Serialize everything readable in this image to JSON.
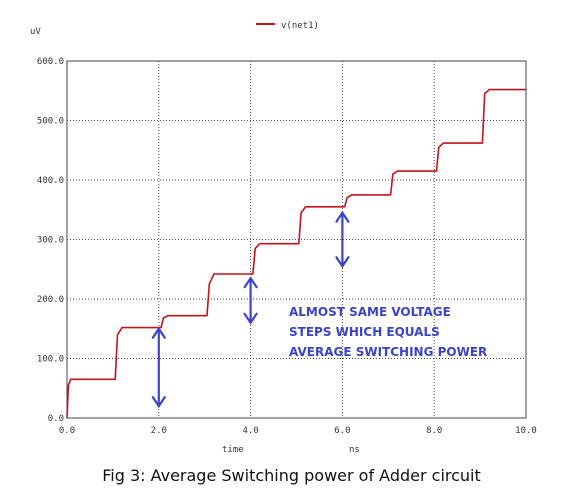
{
  "caption": "Fig 3: Average Switching power of Adder circuit",
  "colors": {
    "trace": "#c0151a",
    "annotation": "#3b44c4",
    "grid": "#444444",
    "axis_text": "#333333"
  },
  "chart_data": {
    "type": "line",
    "title": "",
    "ylabel": "uV",
    "xlabel": "time",
    "xunit": "ns",
    "xlim": [
      0,
      10
    ],
    "ylim": [
      0,
      600
    ],
    "xticks": [
      "0.0",
      "2.0",
      "4.0",
      "6.0",
      "8.0",
      "10.0"
    ],
    "yticks": [
      "0.0",
      "100.0",
      "200.0",
      "300.0",
      "400.0",
      "500.0",
      "600.0"
    ],
    "grid": true,
    "legend_position": "top-center",
    "series": [
      {
        "name": "v(net1)",
        "x": [
          0,
          0.03,
          0.08,
          1.05,
          1.1,
          1.2,
          2.05,
          2.1,
          2.2,
          3.05,
          3.1,
          3.2,
          4.05,
          4.1,
          4.2,
          5.05,
          5.1,
          5.2,
          6.05,
          6.1,
          6.2,
          7.05,
          7.1,
          7.2,
          8.05,
          8.1,
          8.2,
          9.05,
          9.1,
          9.2,
          10.0
        ],
        "y": [
          0,
          55,
          65,
          65,
          140,
          152,
          152,
          168,
          172,
          172,
          225,
          242,
          242,
          285,
          293,
          293,
          345,
          355,
          355,
          370,
          375,
          375,
          410,
          415,
          415,
          455,
          462,
          462,
          545,
          552,
          552
        ]
      }
    ],
    "annotations": {
      "text_lines": [
        "ALMOST SAME VOLTAGE",
        "STEPS WHICH EQUALS",
        "AVERAGE SWITCHING POWER"
      ],
      "arrows": [
        {
          "x": 2.0,
          "y1": 20,
          "y2": 150
        },
        {
          "x": 4.0,
          "y1": 160,
          "y2": 235
        },
        {
          "x": 6.0,
          "y1": 255,
          "y2": 345
        }
      ]
    }
  }
}
